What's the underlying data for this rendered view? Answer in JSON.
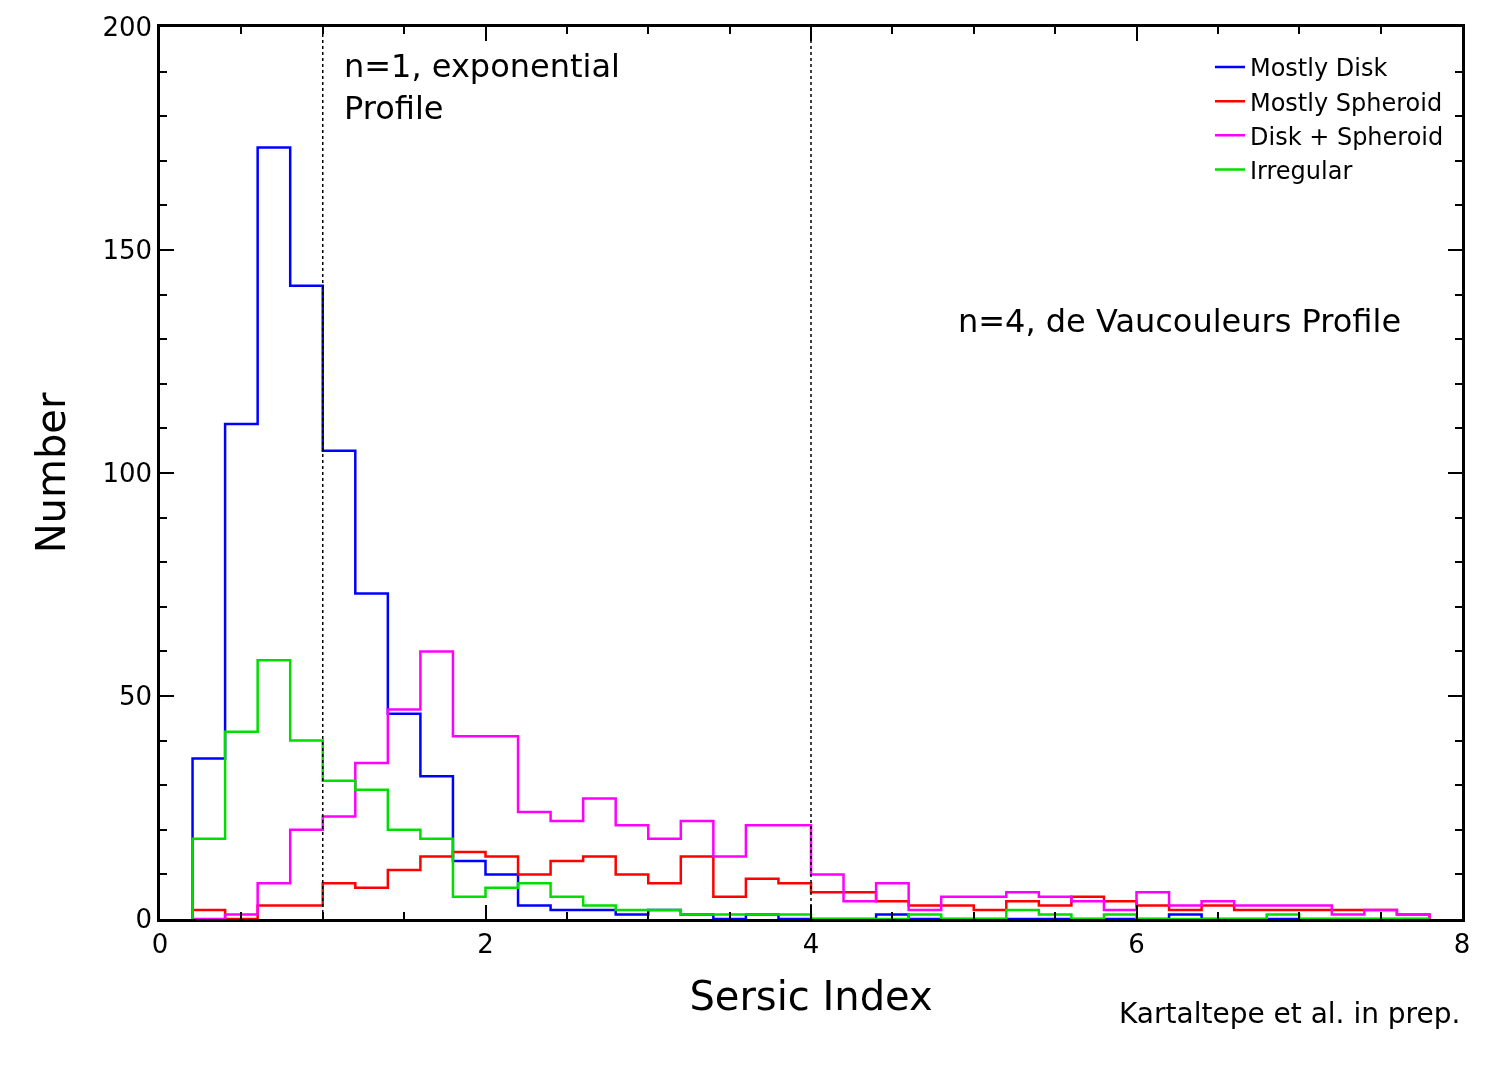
{
  "chart_data": {
    "type": "histogram",
    "xlabel": "Sersic Index",
    "ylabel": "Number",
    "bins": [
      0.2,
      0.4,
      0.6,
      0.8,
      1.0,
      1.2,
      1.4,
      1.6,
      1.8,
      2.0,
      2.2,
      2.4,
      2.6,
      2.8,
      3.0,
      3.2,
      3.4,
      3.6,
      3.8,
      4.0,
      4.2,
      4.4,
      4.6,
      4.8,
      5.0,
      5.2,
      5.4,
      5.6,
      5.8,
      6.0,
      6.2,
      6.4,
      6.6,
      6.8,
      7.0,
      7.2,
      7.4,
      7.6,
      7.8
    ],
    "series": [
      {
        "name": "Mostly Disk",
        "color": "#0000ff",
        "values": [
          36,
          111,
          173,
          142,
          105,
          73,
          46,
          32,
          13,
          10,
          3,
          2,
          2,
          1,
          2,
          1,
          0,
          1,
          0,
          0,
          0,
          1,
          0,
          0,
          0,
          0,
          0,
          0,
          0,
          0,
          1,
          0,
          0,
          0,
          0,
          0,
          0,
          0
        ]
      },
      {
        "name": "Mostly Spheroid",
        "color": "#ff0000",
        "values": [
          2,
          0,
          3,
          3,
          8,
          7,
          11,
          14,
          15,
          14,
          10,
          13,
          14,
          10,
          8,
          14,
          5,
          9,
          8,
          6,
          6,
          4,
          3,
          3,
          2,
          4,
          3,
          5,
          4,
          3,
          2,
          3,
          2,
          2,
          2,
          2,
          2,
          1
        ]
      },
      {
        "name": "Disk + Spheroid",
        "color": "#ff00ff",
        "values": [
          0,
          1,
          8,
          20,
          23,
          35,
          47,
          60,
          41,
          41,
          24,
          22,
          27,
          21,
          18,
          22,
          14,
          21,
          21,
          10,
          4,
          8,
          2,
          5,
          5,
          6,
          5,
          4,
          2,
          6,
          3,
          4,
          3,
          3,
          3,
          1,
          2,
          1
        ]
      },
      {
        "name": "Irregular",
        "color": "#00dd00",
        "values": [
          18,
          42,
          58,
          40,
          31,
          29,
          20,
          18,
          5,
          7,
          8,
          5,
          3,
          2,
          2,
          1,
          1,
          1,
          1,
          0,
          0,
          0,
          1,
          0,
          0,
          2,
          1,
          0,
          1,
          0,
          0,
          0,
          0,
          1,
          0,
          0,
          0,
          0
        ]
      }
    ],
    "xlim": [
      0,
      8
    ],
    "xticks": [
      0,
      2,
      4,
      6,
      8
    ],
    "ylim": [
      0,
      200
    ],
    "yticks": [
      0,
      50,
      100,
      150,
      200
    ],
    "ref_lines": [
      {
        "axis": "x",
        "value": 1,
        "color": "#000000",
        "line_style": "dotted"
      },
      {
        "axis": "x",
        "value": 4,
        "color": "#000000",
        "line_style": "dotted"
      }
    ],
    "annotations": [
      "n=1, exponential\nProfile",
      "n=4, de Vaucouleurs Profile",
      "Kartaltepe et al. in prep."
    ],
    "legend": "top right"
  }
}
